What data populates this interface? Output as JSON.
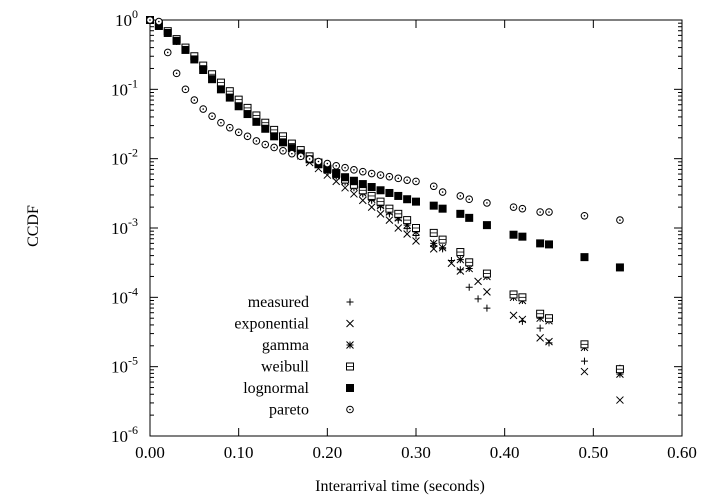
{
  "chart_data": {
    "type": "scatter",
    "xlabel": "Interarrival time (seconds)",
    "ylabel": "CCDF",
    "x_ticks": [
      "0.00",
      "0.10",
      "0.20",
      "0.30",
      "0.40",
      "0.50",
      "0.60"
    ],
    "x_tick_values": [
      0,
      0.1,
      0.2,
      0.3,
      0.4,
      0.5,
      0.6
    ],
    "y_ticks": [
      {
        "base": "10",
        "exp": "0",
        "value": 1
      },
      {
        "base": "10",
        "exp": "-1",
        "value": 0.1
      },
      {
        "base": "10",
        "exp": "-2",
        "value": 0.01
      },
      {
        "base": "10",
        "exp": "-3",
        "value": 0.001
      },
      {
        "base": "10",
        "exp": "-4",
        "value": 0.0001
      },
      {
        "base": "10",
        "exp": "-5",
        "value": 1e-05
      },
      {
        "base": "10",
        "exp": "-6",
        "value": 1e-06
      }
    ],
    "xlim": [
      0,
      0.6
    ],
    "ylim": [
      1e-06,
      1
    ],
    "y_scale": "log",
    "grid": false,
    "legend_position": "bottom-left",
    "series": [
      {
        "name": "measured",
        "marker": "plus",
        "points": [
          [
            0.0,
            1.0
          ],
          [
            0.01,
            0.85
          ],
          [
            0.02,
            0.66
          ],
          [
            0.03,
            0.49
          ],
          [
            0.04,
            0.37
          ],
          [
            0.05,
            0.27
          ],
          [
            0.06,
            0.2
          ],
          [
            0.07,
            0.15
          ],
          [
            0.08,
            0.11
          ],
          [
            0.09,
            0.083
          ],
          [
            0.1,
            0.063
          ],
          [
            0.11,
            0.048
          ],
          [
            0.12,
            0.037
          ],
          [
            0.13,
            0.029
          ],
          [
            0.14,
            0.023
          ],
          [
            0.15,
            0.0185
          ],
          [
            0.16,
            0.015
          ],
          [
            0.17,
            0.012
          ],
          [
            0.18,
            0.0098
          ],
          [
            0.19,
            0.0081
          ],
          [
            0.2,
            0.0068
          ],
          [
            0.21,
            0.0056
          ],
          [
            0.22,
            0.0046
          ],
          [
            0.23,
            0.0038
          ],
          [
            0.24,
            0.0031
          ],
          [
            0.25,
            0.0025
          ],
          [
            0.26,
            0.002
          ],
          [
            0.27,
            0.0016
          ],
          [
            0.28,
            0.0013
          ],
          [
            0.29,
            0.00098
          ],
          [
            0.3,
            0.00078
          ],
          [
            0.32,
            0.00055
          ],
          [
            0.33,
            0.0005
          ],
          [
            0.34,
            0.00034
          ],
          [
            0.35,
            0.00025
          ],
          [
            0.36,
            0.00014
          ],
          [
            0.37,
            9.5e-05
          ],
          [
            0.38,
            7e-05
          ],
          [
            0.42,
            4.5e-05
          ],
          [
            0.44,
            3.6e-05
          ],
          [
            0.45,
            2.2e-05
          ],
          [
            0.49,
            1.2e-05
          ],
          [
            0.53,
            9.5e-06
          ]
        ]
      },
      {
        "name": "exponential",
        "marker": "cross",
        "points": [
          [
            0.0,
            1.0
          ],
          [
            0.01,
            0.85
          ],
          [
            0.02,
            0.67
          ],
          [
            0.03,
            0.5
          ],
          [
            0.04,
            0.38
          ],
          [
            0.05,
            0.28
          ],
          [
            0.06,
            0.21
          ],
          [
            0.07,
            0.155
          ],
          [
            0.08,
            0.115
          ],
          [
            0.09,
            0.086
          ],
          [
            0.1,
            0.065
          ],
          [
            0.11,
            0.049
          ],
          [
            0.12,
            0.037
          ],
          [
            0.13,
            0.028
          ],
          [
            0.14,
            0.022
          ],
          [
            0.15,
            0.0175
          ],
          [
            0.16,
            0.014
          ],
          [
            0.17,
            0.011
          ],
          [
            0.18,
            0.0088
          ],
          [
            0.19,
            0.0072
          ],
          [
            0.2,
            0.0058
          ],
          [
            0.21,
            0.0047
          ],
          [
            0.22,
            0.0038
          ],
          [
            0.23,
            0.0031
          ],
          [
            0.24,
            0.0025
          ],
          [
            0.25,
            0.002
          ],
          [
            0.26,
            0.0016
          ],
          [
            0.27,
            0.0013
          ],
          [
            0.28,
            0.001
          ],
          [
            0.29,
            0.00082
          ],
          [
            0.3,
            0.00065
          ],
          [
            0.32,
            0.0005
          ],
          [
            0.34,
            0.00031
          ],
          [
            0.35,
            0.00024
          ],
          [
            0.37,
            0.00017
          ],
          [
            0.38,
            0.00012
          ],
          [
            0.41,
            5.5e-05
          ],
          [
            0.42,
            4.8e-05
          ],
          [
            0.44,
            2.6e-05
          ],
          [
            0.45,
            2.3e-05
          ],
          [
            0.49,
            8.5e-06
          ],
          [
            0.53,
            3.3e-06
          ]
        ]
      },
      {
        "name": "gamma",
        "marker": "star",
        "points": [
          [
            0.0,
            1.0
          ],
          [
            0.01,
            0.87
          ],
          [
            0.02,
            0.68
          ],
          [
            0.03,
            0.52
          ],
          [
            0.04,
            0.39
          ],
          [
            0.05,
            0.29
          ],
          [
            0.06,
            0.215
          ],
          [
            0.07,
            0.16
          ],
          [
            0.08,
            0.12
          ],
          [
            0.09,
            0.09
          ],
          [
            0.1,
            0.068
          ],
          [
            0.11,
            0.052
          ],
          [
            0.12,
            0.04
          ],
          [
            0.13,
            0.031
          ],
          [
            0.14,
            0.024
          ],
          [
            0.15,
            0.019
          ],
          [
            0.16,
            0.0155
          ],
          [
            0.17,
            0.0125
          ],
          [
            0.18,
            0.0102
          ],
          [
            0.19,
            0.0083
          ],
          [
            0.2,
            0.0068
          ],
          [
            0.21,
            0.0057
          ],
          [
            0.22,
            0.0047
          ],
          [
            0.23,
            0.0039
          ],
          [
            0.24,
            0.0032
          ],
          [
            0.25,
            0.0026
          ],
          [
            0.26,
            0.0021
          ],
          [
            0.27,
            0.0017
          ],
          [
            0.28,
            0.0014
          ],
          [
            0.29,
            0.0011
          ],
          [
            0.3,
            0.00088
          ],
          [
            0.32,
            0.0006
          ],
          [
            0.33,
            0.00052
          ],
          [
            0.35,
            0.00035
          ],
          [
            0.36,
            0.00026
          ],
          [
            0.38,
            0.0002
          ],
          [
            0.41,
            0.0001
          ],
          [
            0.42,
            9e-05
          ],
          [
            0.44,
            5e-05
          ],
          [
            0.45,
            4.6e-05
          ],
          [
            0.49,
            1.9e-05
          ],
          [
            0.53,
            7.8e-06
          ]
        ]
      },
      {
        "name": "weibull",
        "marker": "square-open",
        "points": [
          [
            0.0,
            1.0
          ],
          [
            0.01,
            0.87
          ],
          [
            0.02,
            0.69
          ],
          [
            0.03,
            0.53
          ],
          [
            0.04,
            0.4
          ],
          [
            0.05,
            0.3
          ],
          [
            0.06,
            0.22
          ],
          [
            0.07,
            0.165
          ],
          [
            0.08,
            0.125
          ],
          [
            0.09,
            0.094
          ],
          [
            0.1,
            0.071
          ],
          [
            0.11,
            0.054
          ],
          [
            0.12,
            0.042
          ],
          [
            0.13,
            0.033
          ],
          [
            0.14,
            0.026
          ],
          [
            0.15,
            0.021
          ],
          [
            0.16,
            0.0165
          ],
          [
            0.17,
            0.0133
          ],
          [
            0.18,
            0.0108
          ],
          [
            0.19,
            0.0088
          ],
          [
            0.2,
            0.0072
          ],
          [
            0.21,
            0.006
          ],
          [
            0.22,
            0.005
          ],
          [
            0.23,
            0.0042
          ],
          [
            0.24,
            0.0035
          ],
          [
            0.25,
            0.0029
          ],
          [
            0.26,
            0.0024
          ],
          [
            0.27,
            0.0019
          ],
          [
            0.28,
            0.0016
          ],
          [
            0.29,
            0.0013
          ],
          [
            0.3,
            0.001
          ],
          [
            0.32,
            0.00085
          ],
          [
            0.33,
            0.00068
          ],
          [
            0.35,
            0.00045
          ],
          [
            0.36,
            0.00032
          ],
          [
            0.38,
            0.00022
          ],
          [
            0.41,
            0.00011
          ],
          [
            0.42,
            0.0001
          ],
          [
            0.44,
            5.8e-05
          ],
          [
            0.45,
            5e-05
          ],
          [
            0.49,
            2.1e-05
          ],
          [
            0.53,
            9.2e-06
          ]
        ]
      },
      {
        "name": "lognormal",
        "marker": "square-filled",
        "points": [
          [
            0.0,
            1.0
          ],
          [
            0.01,
            0.82
          ],
          [
            0.02,
            0.65
          ],
          [
            0.03,
            0.5
          ],
          [
            0.04,
            0.37
          ],
          [
            0.05,
            0.27
          ],
          [
            0.06,
            0.19
          ],
          [
            0.07,
            0.14
          ],
          [
            0.08,
            0.1
          ],
          [
            0.09,
            0.076
          ],
          [
            0.1,
            0.057
          ],
          [
            0.11,
            0.044
          ],
          [
            0.12,
            0.034
          ],
          [
            0.13,
            0.027
          ],
          [
            0.14,
            0.021
          ],
          [
            0.15,
            0.0172
          ],
          [
            0.16,
            0.0142
          ],
          [
            0.17,
            0.0118
          ],
          [
            0.18,
            0.0098
          ],
          [
            0.19,
            0.0083
          ],
          [
            0.2,
            0.0071
          ],
          [
            0.21,
            0.0062
          ],
          [
            0.22,
            0.0054
          ],
          [
            0.23,
            0.0048
          ],
          [
            0.24,
            0.0043
          ],
          [
            0.25,
            0.0039
          ],
          [
            0.26,
            0.0035
          ],
          [
            0.27,
            0.0032
          ],
          [
            0.28,
            0.0029
          ],
          [
            0.29,
            0.0026
          ],
          [
            0.3,
            0.0024
          ],
          [
            0.32,
            0.0021
          ],
          [
            0.33,
            0.0019
          ],
          [
            0.35,
            0.0016
          ],
          [
            0.36,
            0.0014
          ],
          [
            0.38,
            0.0011
          ],
          [
            0.41,
            0.0008
          ],
          [
            0.42,
            0.00075
          ],
          [
            0.44,
            0.0006
          ],
          [
            0.45,
            0.00058
          ],
          [
            0.49,
            0.00038
          ],
          [
            0.53,
            0.00027
          ]
        ]
      },
      {
        "name": "pareto",
        "marker": "circle-dot",
        "points": [
          [
            0.0,
            1.0
          ],
          [
            0.01,
            0.95
          ],
          [
            0.02,
            0.34
          ],
          [
            0.03,
            0.17
          ],
          [
            0.04,
            0.1
          ],
          [
            0.05,
            0.07
          ],
          [
            0.06,
            0.052
          ],
          [
            0.07,
            0.041
          ],
          [
            0.08,
            0.033
          ],
          [
            0.09,
            0.028
          ],
          [
            0.1,
            0.024
          ],
          [
            0.11,
            0.021
          ],
          [
            0.12,
            0.018
          ],
          [
            0.13,
            0.016
          ],
          [
            0.14,
            0.0145
          ],
          [
            0.15,
            0.013
          ],
          [
            0.16,
            0.0118
          ],
          [
            0.17,
            0.0108
          ],
          [
            0.18,
            0.0099
          ],
          [
            0.19,
            0.0091
          ],
          [
            0.2,
            0.0085
          ],
          [
            0.21,
            0.0079
          ],
          [
            0.22,
            0.0074
          ],
          [
            0.23,
            0.0069
          ],
          [
            0.24,
            0.0065
          ],
          [
            0.25,
            0.0061
          ],
          [
            0.26,
            0.0058
          ],
          [
            0.27,
            0.0055
          ],
          [
            0.28,
            0.0052
          ],
          [
            0.29,
            0.0049
          ],
          [
            0.3,
            0.0047
          ],
          [
            0.32,
            0.004
          ],
          [
            0.33,
            0.0033
          ],
          [
            0.35,
            0.0029
          ],
          [
            0.36,
            0.0026
          ],
          [
            0.38,
            0.0023
          ],
          [
            0.41,
            0.002
          ],
          [
            0.42,
            0.0019
          ],
          [
            0.44,
            0.0017
          ],
          [
            0.45,
            0.0017
          ],
          [
            0.49,
            0.0015
          ],
          [
            0.53,
            0.0013
          ]
        ]
      }
    ]
  }
}
